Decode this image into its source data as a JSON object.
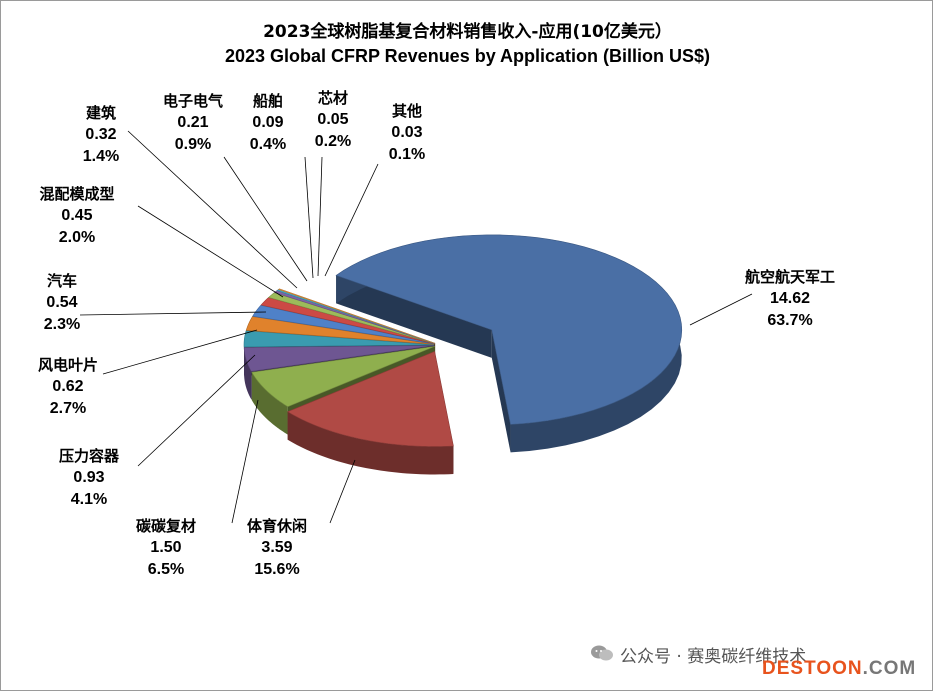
{
  "chart_data": {
    "type": "pie",
    "title": "2023全球树脂基复合材料销售收入-应用(10亿美元）",
    "subtitle": "2023 Global CFRP Revenues by Application (Billion US$)",
    "slices": [
      {
        "name": "航空航天军工",
        "value": "14.62",
        "percent": "63.7%",
        "v": 14.62,
        "color": "#4a6fa5"
      },
      {
        "name": "体育休闲",
        "value": "3.59",
        "percent": "15.6%",
        "v": 3.59,
        "color": "#b04a45"
      },
      {
        "name": "碳碳复材",
        "value": "1.50",
        "percent": "6.5%",
        "v": 1.5,
        "color": "#8faf4e"
      },
      {
        "name": "压力容器",
        "value": "0.93",
        "percent": "4.1%",
        "v": 0.93,
        "color": "#6e5692"
      },
      {
        "name": "风电叶片",
        "value": "0.62",
        "percent": "2.7%",
        "v": 0.62,
        "color": "#3a9bb0"
      },
      {
        "name": "汽车",
        "value": "0.54",
        "percent": "2.3%",
        "v": 0.54,
        "color": "#e0822c"
      },
      {
        "name": "混配模成型",
        "value": "0.45",
        "percent": "2.0%",
        "v": 0.45,
        "color": "#4f81c8"
      },
      {
        "name": "建筑",
        "value": "0.32",
        "percent": "1.4%",
        "v": 0.32,
        "color": "#cc4a45"
      },
      {
        "name": "电子电气",
        "value": "0.21",
        "percent": "0.9%",
        "v": 0.21,
        "color": "#9cbb5a"
      },
      {
        "name": "船舶",
        "value": "0.09",
        "percent": "0.4%",
        "v": 0.09,
        "color": "#7e63a5"
      },
      {
        "name": "芯材",
        "value": "0.05",
        "percent": "0.2%",
        "v": 0.05,
        "color": "#46abc6"
      },
      {
        "name": "其他",
        "value": "0.03",
        "percent": "0.1%",
        "v": 0.03,
        "color": "#f09a3e"
      }
    ]
  },
  "watermark": {
    "text": "公众号 · 赛奥碳纤维技术",
    "brand": "DESTOON",
    "brand_suffix": ".COM"
  }
}
